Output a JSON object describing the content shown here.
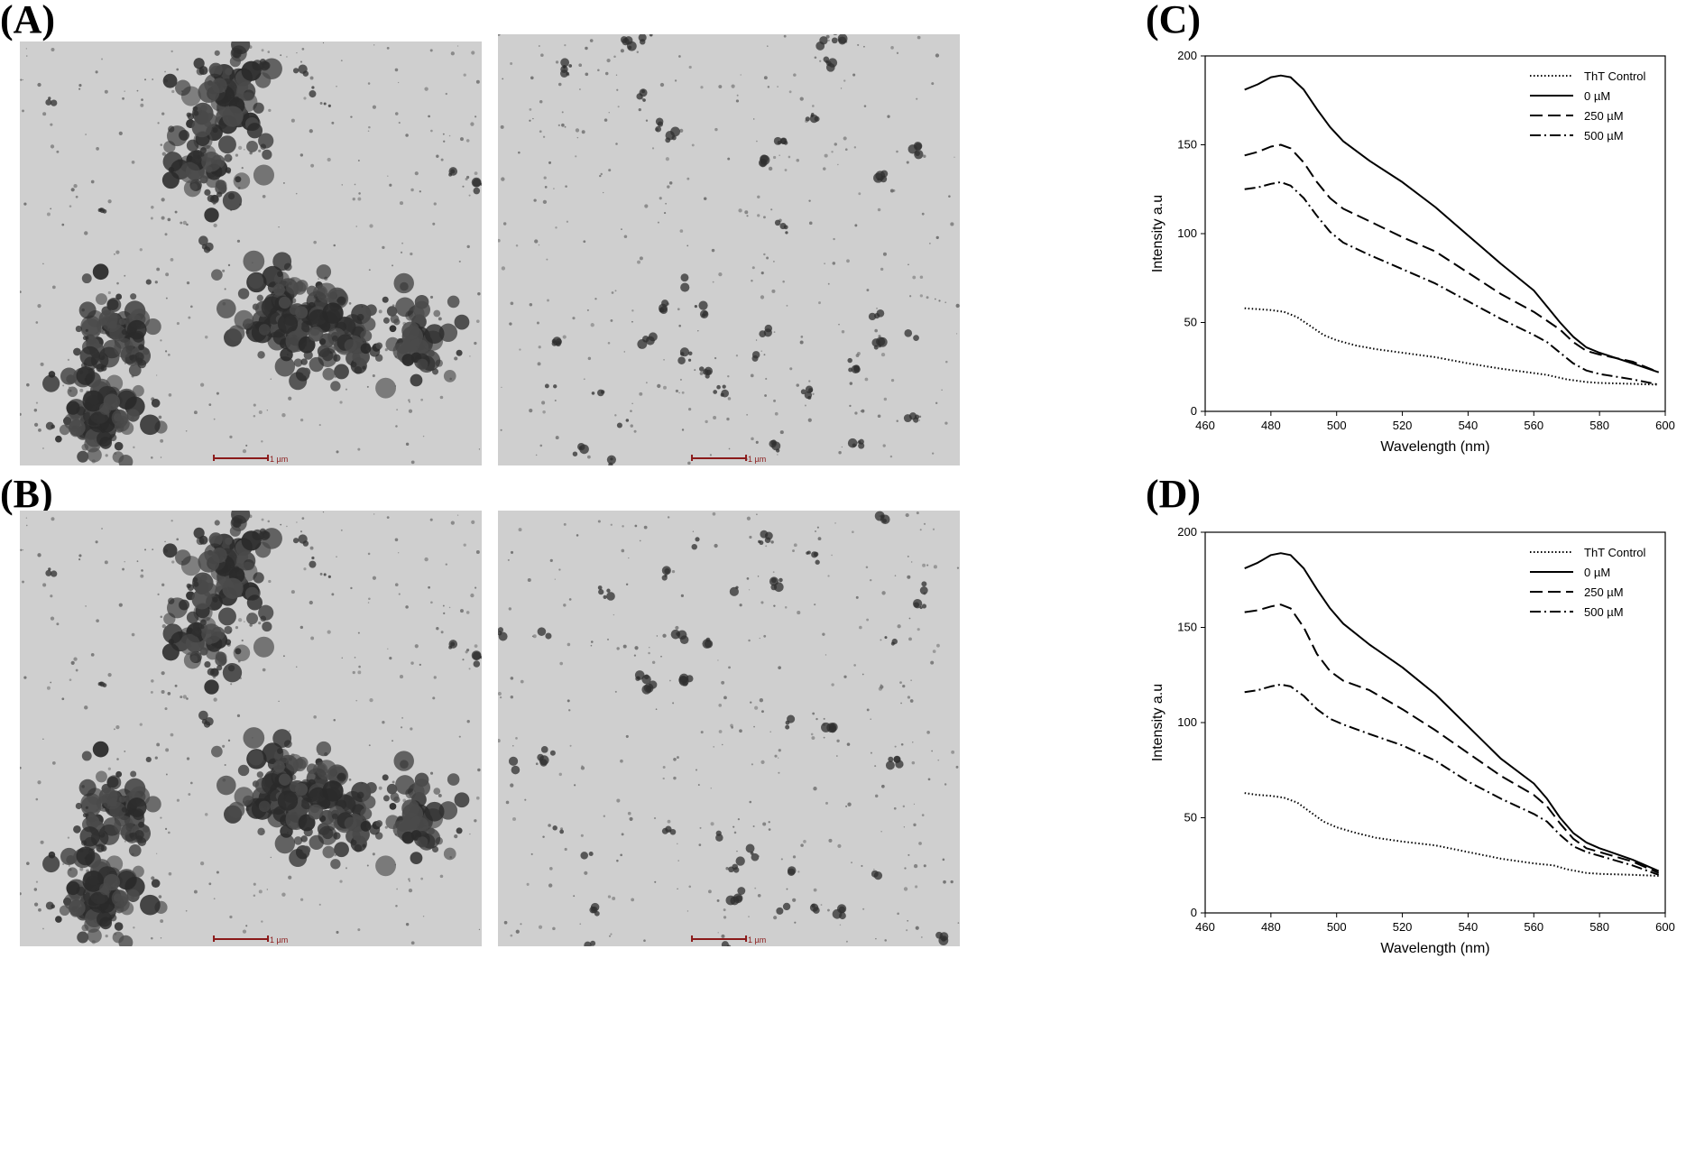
{
  "panels": {
    "a_label": "(A)",
    "b_label": "(B)",
    "c_label": "(C)",
    "d_label": "(D)"
  },
  "scale_bar_text": "1 µm",
  "chart_data": [
    {
      "type": "line",
      "panel": "C",
      "title": "",
      "xlabel": "Wavelength (nm)",
      "ylabel": "Intensity a.u",
      "xlim": [
        460,
        600
      ],
      "ylim": [
        0,
        200
      ],
      "x_ticks": [
        460,
        480,
        500,
        520,
        540,
        560,
        580,
        600
      ],
      "y_ticks": [
        0,
        50,
        100,
        150,
        200
      ],
      "legend_position": "top-right",
      "series": [
        {
          "name": "ThT Control",
          "dash": "dotted",
          "x": [
            472,
            476,
            480,
            484,
            488,
            492,
            496,
            500,
            506,
            512,
            520,
            530,
            540,
            550,
            560,
            564,
            570,
            576,
            580,
            590,
            598
          ],
          "y": [
            58,
            57.5,
            57,
            56,
            53,
            48,
            43,
            40,
            37,
            35,
            33,
            30.5,
            27,
            24,
            21.5,
            20.5,
            18,
            16.5,
            16,
            15.5,
            15
          ]
        },
        {
          "name": "0 µM",
          "dash": "solid",
          "x": [
            472,
            476,
            480,
            483,
            486,
            490,
            494,
            498,
            502,
            510,
            520,
            530,
            540,
            550,
            560,
            564,
            568,
            572,
            576,
            580,
            590,
            598
          ],
          "y": [
            181,
            184,
            188,
            189,
            188,
            181,
            170,
            160,
            152,
            141,
            129,
            115,
            99,
            83,
            68,
            59,
            50,
            42,
            36,
            33,
            27,
            22
          ]
        },
        {
          "name": "250 µM",
          "dash": "dashed",
          "x": [
            472,
            476,
            480,
            483,
            486,
            490,
            494,
            498,
            502,
            510,
            520,
            530,
            540,
            550,
            560,
            564,
            568,
            572,
            576,
            580,
            590,
            598
          ],
          "y": [
            144,
            146,
            149,
            150,
            148,
            140,
            129,
            120,
            114,
            107,
            98,
            90,
            78,
            66,
            56,
            51,
            46,
            39,
            34,
            32,
            28,
            22
          ]
        },
        {
          "name": "500 µM",
          "dash": "dash-dot",
          "x": [
            472,
            476,
            480,
            483,
            486,
            490,
            494,
            498,
            502,
            510,
            520,
            530,
            540,
            550,
            560,
            564,
            568,
            572,
            576,
            580,
            590,
            598
          ],
          "y": [
            125,
            126,
            128,
            129,
            127,
            120,
            110,
            101,
            95,
            88,
            80,
            72,
            62,
            52,
            43,
            39,
            33,
            27,
            23,
            21,
            18,
            15
          ]
        }
      ]
    },
    {
      "type": "line",
      "panel": "D",
      "title": "",
      "xlabel": "Wavelength (nm)",
      "ylabel": "Intensity a.u",
      "xlim": [
        460,
        600
      ],
      "ylim": [
        0,
        200
      ],
      "x_ticks": [
        460,
        480,
        500,
        520,
        540,
        560,
        580,
        600
      ],
      "y_ticks": [
        0,
        50,
        100,
        150,
        200
      ],
      "legend_position": "top-right",
      "series": [
        {
          "name": "ThT Control",
          "dash": "dotted",
          "x": [
            472,
            476,
            480,
            484,
            488,
            492,
            496,
            500,
            506,
            512,
            520,
            530,
            540,
            550,
            560,
            566,
            570,
            576,
            580,
            590,
            598
          ],
          "y": [
            63,
            62,
            61.5,
            60.5,
            58,
            53,
            48,
            45,
            42,
            39.5,
            37.5,
            35.5,
            32,
            28.5,
            26,
            25,
            23,
            21,
            20.5,
            20,
            19.5
          ]
        },
        {
          "name": "0 µM",
          "dash": "solid",
          "x": [
            472,
            476,
            480,
            483,
            486,
            490,
            494,
            498,
            502,
            510,
            520,
            530,
            540,
            550,
            560,
            564,
            568,
            572,
            576,
            580,
            590,
            598
          ],
          "y": [
            181,
            184,
            188,
            189,
            188,
            181,
            170,
            160,
            152,
            141,
            129,
            115,
            98,
            81,
            68,
            60,
            50,
            42,
            37,
            34,
            28,
            22
          ]
        },
        {
          "name": "250 µM",
          "dash": "dashed",
          "x": [
            472,
            476,
            480,
            483,
            486,
            490,
            494,
            498,
            502,
            510,
            520,
            530,
            540,
            550,
            560,
            564,
            568,
            572,
            576,
            580,
            590,
            598
          ],
          "y": [
            158,
            159,
            161,
            162,
            160,
            150,
            136,
            127,
            122,
            117,
            107,
            96,
            84,
            72,
            62,
            56,
            47,
            39,
            34,
            32,
            27,
            21
          ]
        },
        {
          "name": "500 µM",
          "dash": "dash-dot",
          "x": [
            472,
            476,
            480,
            483,
            486,
            490,
            494,
            498,
            502,
            510,
            520,
            530,
            540,
            550,
            560,
            564,
            568,
            572,
            576,
            580,
            590,
            598
          ],
          "y": [
            116,
            117,
            119,
            120,
            119,
            114,
            107,
            102,
            99,
            94,
            88,
            80,
            69,
            60,
            52,
            48,
            41,
            35,
            32,
            30,
            25,
            20
          ]
        }
      ]
    }
  ]
}
